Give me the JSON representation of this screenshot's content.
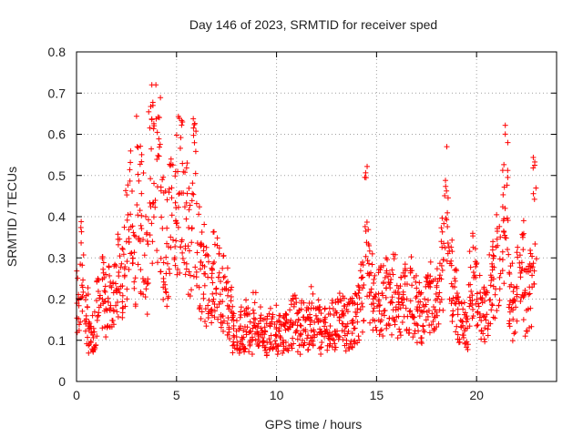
{
  "chart_data": {
    "type": "scatter",
    "title": "Day 146 of 2023, SRMTID for receiver sped",
    "xlabel": "GPS time / hours",
    "ylabel": "SRMTID / TECUs",
    "xlim": [
      0,
      24
    ],
    "ylim": [
      0,
      0.8
    ],
    "xticks": [
      0,
      5,
      10,
      15,
      20
    ],
    "yticks": [
      0,
      0.1,
      0.2,
      0.3,
      0.4,
      0.5,
      0.6,
      0.7,
      0.8
    ],
    "xtick_labels": [
      "0",
      "5",
      "10",
      "15",
      "20"
    ],
    "ytick_labels": [
      "0",
      "0.1",
      "0.2",
      "0.3",
      "0.4",
      "0.5",
      "0.6",
      "0.7",
      "0.8"
    ],
    "grid": true,
    "marker": "+",
    "color": "#ff0000",
    "series": [
      {
        "name": "SRMTID",
        "note": "approximate envelope; dense scatter of '+' markers",
        "x": [
          0.0,
          0.2,
          0.4,
          0.6,
          0.8,
          1.0,
          1.2,
          1.4,
          1.6,
          1.8,
          2.0,
          2.2,
          2.4,
          2.6,
          2.8,
          3.0,
          3.2,
          3.4,
          3.6,
          3.8,
          4.0,
          4.2,
          4.4,
          4.6,
          4.8,
          5.0,
          5.2,
          5.4,
          5.6,
          5.8,
          6.0,
          6.2,
          6.4,
          6.6,
          6.8,
          7.0,
          7.2,
          7.4,
          7.6,
          7.8,
          8.0,
          8.2,
          8.4,
          8.6,
          8.8,
          9.0,
          9.2,
          9.4,
          9.6,
          9.8,
          10.0,
          10.2,
          10.4,
          10.6,
          10.8,
          11.0,
          11.2,
          11.4,
          11.6,
          11.8,
          12.0,
          12.2,
          12.4,
          12.6,
          12.8,
          13.0,
          13.2,
          13.4,
          13.6,
          13.8,
          14.0,
          14.2,
          14.4,
          14.6,
          14.8,
          15.0,
          15.2,
          15.4,
          15.6,
          15.8,
          16.0,
          16.2,
          16.4,
          16.6,
          16.8,
          17.0,
          17.2,
          17.4,
          17.6,
          17.8,
          18.0,
          18.2,
          18.4,
          18.6,
          18.8,
          19.0,
          19.2,
          19.4,
          19.6,
          19.8,
          20.0,
          20.2,
          20.4,
          20.6,
          20.8,
          21.0,
          21.2,
          21.4,
          21.6,
          21.8,
          22.0,
          22.2,
          22.4,
          22.6,
          22.8
        ],
        "y": [
          0.2,
          0.27,
          0.16,
          0.1,
          0.13,
          0.18,
          0.21,
          0.19,
          0.23,
          0.2,
          0.25,
          0.28,
          0.33,
          0.4,
          0.3,
          0.45,
          0.38,
          0.29,
          0.52,
          0.62,
          0.48,
          0.36,
          0.33,
          0.38,
          0.42,
          0.46,
          0.44,
          0.38,
          0.34,
          0.45,
          0.31,
          0.27,
          0.24,
          0.22,
          0.28,
          0.25,
          0.22,
          0.2,
          0.16,
          0.12,
          0.11,
          0.13,
          0.14,
          0.12,
          0.15,
          0.13,
          0.12,
          0.11,
          0.14,
          0.13,
          0.12,
          0.11,
          0.13,
          0.14,
          0.15,
          0.12,
          0.14,
          0.13,
          0.16,
          0.15,
          0.14,
          0.12,
          0.13,
          0.15,
          0.14,
          0.15,
          0.16,
          0.13,
          0.14,
          0.15,
          0.17,
          0.2,
          0.36,
          0.24,
          0.18,
          0.19,
          0.2,
          0.21,
          0.19,
          0.22,
          0.17,
          0.19,
          0.2,
          0.21,
          0.18,
          0.17,
          0.16,
          0.19,
          0.2,
          0.21,
          0.22,
          0.28,
          0.4,
          0.24,
          0.19,
          0.16,
          0.14,
          0.13,
          0.22,
          0.26,
          0.2,
          0.18,
          0.17,
          0.22,
          0.25,
          0.3,
          0.37,
          0.48,
          0.2,
          0.16,
          0.25,
          0.27,
          0.2,
          0.22,
          0.38
        ]
      }
    ]
  }
}
